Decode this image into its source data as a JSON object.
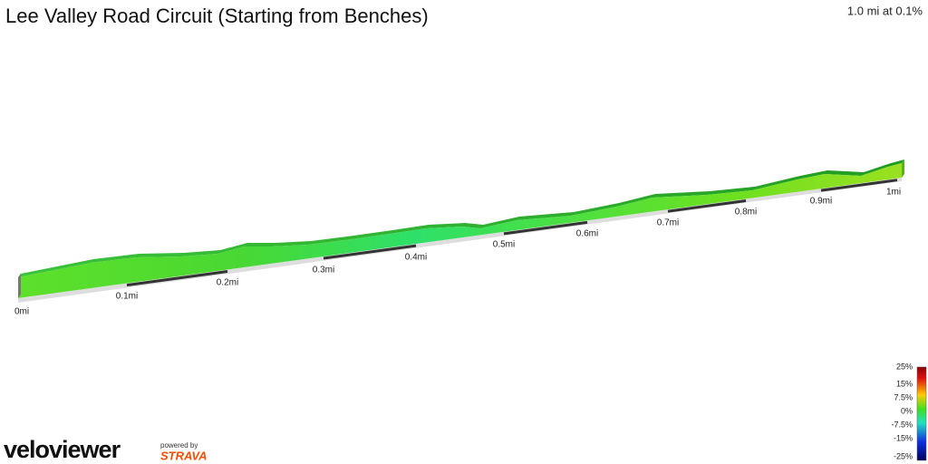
{
  "header": {
    "title": "Lee Valley Road Circuit (Starting from Benches)",
    "summary": "1.0 mi at 0.1%"
  },
  "distance_labels": [
    "0mi",
    "0.1mi",
    "0.2mi",
    "0.3mi",
    "0.4mi",
    "0.5mi",
    "0.6mi",
    "0.7mi",
    "0.8mi",
    "0.9mi",
    "1mi"
  ],
  "gradient_legend": [
    "25%",
    "15%",
    "7.5%",
    "0%",
    "-7.5%",
    "-15%",
    "-25%"
  ],
  "footer": {
    "logo": "veloviewer",
    "powered_by": "powered by",
    "partner": "STRAVA"
  }
}
